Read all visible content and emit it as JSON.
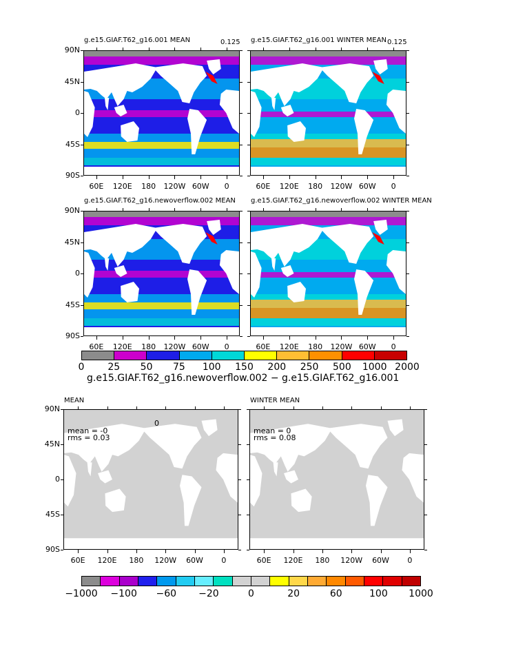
{
  "panels": {
    "top_left": {
      "title": "g.e15.GIAF.T62_g16.001 MEAN",
      "corner": "0.125"
    },
    "top_right": {
      "title": "g.e15.GIAF.T62_g16.001 WINTER MEAN",
      "corner": "0.125"
    },
    "mid_left": {
      "title": "g.e15.GIAF.T62_g16.newoverflow.002 MEAN"
    },
    "mid_right": {
      "title": "g.e15.GIAF.T62_g16.newoverflow.002 WINTER MEAN"
    },
    "bot_left": {
      "title": "MEAN",
      "mean": "mean = -0",
      "rms": "rms = 0.03",
      "marker": "0"
    },
    "bot_right": {
      "title": "WINTER MEAN",
      "mean": "mean = 0",
      "rms": "rms = 0.08"
    }
  },
  "lat_labels": [
    "90N",
    "45N",
    "0",
    "45S",
    "90S"
  ],
  "lon_labels": [
    "60E",
    "120E",
    "180",
    "120W",
    "60W",
    "0"
  ],
  "colorbar_top": {
    "colors": [
      "#8c8c8c",
      "#cc00cc",
      "#1e1ee6",
      "#00aaee",
      "#00d8d8",
      "#ffff00",
      "#ffbe33",
      "#ff9000",
      "#ff0000",
      "#c80000"
    ],
    "labels": [
      "0",
      "25",
      "50",
      "75",
      "100",
      "150",
      "200",
      "250",
      "500",
      "1000",
      "2000"
    ]
  },
  "diff_title": "g.e15.GIAF.T62_g16.newoverflow.002 − g.e15.GIAF.T62_g16.001",
  "colorbar_bottom": {
    "colors": [
      "#8c8c8c",
      "#dd00dd",
      "#aa00cc",
      "#2020ee",
      "#0099ee",
      "#22ccf2",
      "#66eeff",
      "#00e0c0",
      "#d2d2d2",
      "#d2d2d2",
      "#ffff00",
      "#ffd84a",
      "#ffaa33",
      "#ff8800",
      "#ff5a00",
      "#ff0000",
      "#e00000",
      "#c00000"
    ],
    "labels": [
      "−1000",
      "−100",
      "−60",
      "−20",
      "0",
      "20",
      "60",
      "100",
      "1000"
    ]
  },
  "map_colors": {
    "land": "#ffffff",
    "ocean_default": "#1e1ee6",
    "diff_ocean": "#d2d2d2",
    "diff_land": "#ffffff"
  }
}
